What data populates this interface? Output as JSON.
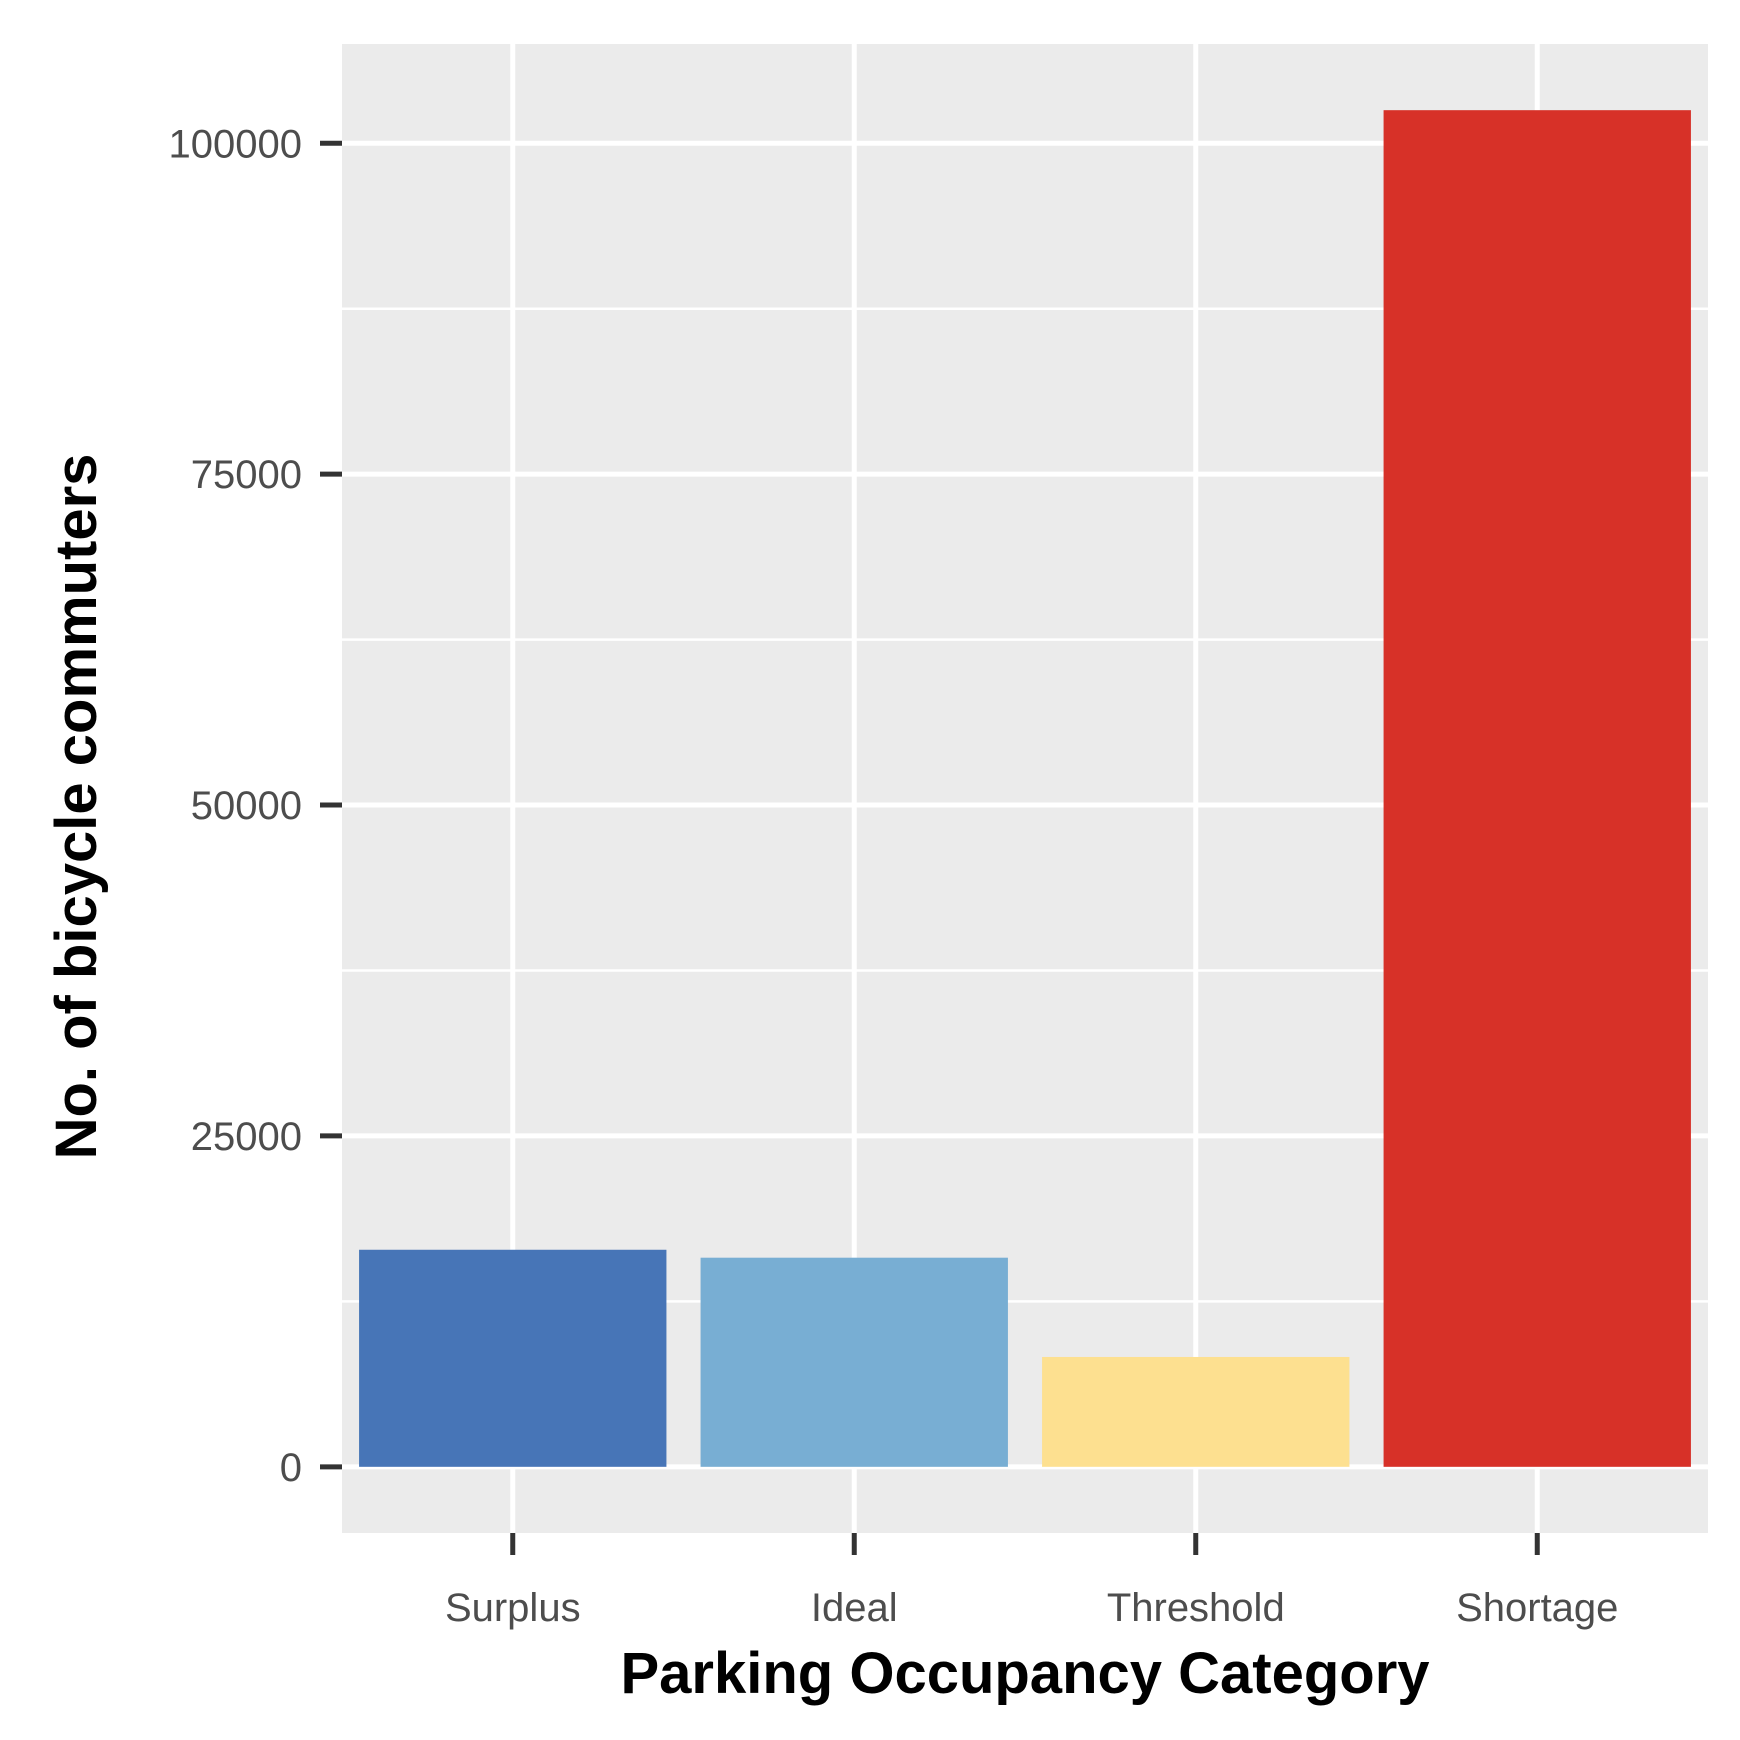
{
  "chart_data": {
    "type": "bar",
    "title": "",
    "xlabel": "Parking Occupancy Category",
    "ylabel": "No. of bicycle commuters",
    "categories": [
      "Surplus",
      "Ideal",
      "Threshold",
      "Shortage"
    ],
    "values": [
      16400,
      15800,
      8300,
      102500
    ],
    "colors": [
      "#4775b7",
      "#78aed3",
      "#fde090",
      "#d73128"
    ],
    "yticks": [
      0,
      25000,
      50000,
      75000,
      100000
    ],
    "ytick_labels": [
      "0",
      "25000",
      "50000",
      "75000",
      "100000"
    ],
    "ylim": [
      -5000,
      107500
    ],
    "grid": true,
    "panel_background": "#ebebeb",
    "grid_color": "#ffffff"
  }
}
